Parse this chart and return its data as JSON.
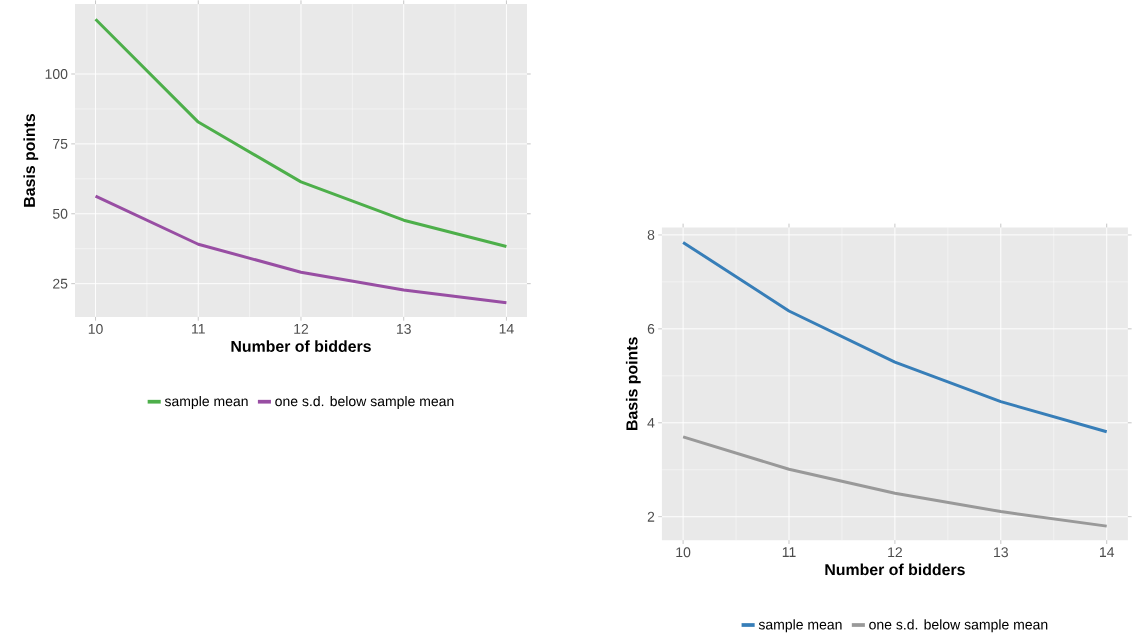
{
  "chart_data": [
    {
      "type": "line",
      "xlabel": "Number of bidders",
      "ylabel": "Basis points",
      "x": [
        10,
        11,
        12,
        13,
        14
      ],
      "series": [
        {
          "name": "sample mean",
          "color": "#4daf4a",
          "values": [
            119.6,
            82.8,
            61.4,
            47.7,
            38.3
          ]
        },
        {
          "name": "one s.d. below sample mean",
          "color": "#984ea3",
          "values": [
            56.3,
            39.1,
            29.1,
            22.7,
            18.2
          ]
        }
      ],
      "xlim": [
        9.8,
        14.2
      ],
      "ylim": [
        13.1,
        125
      ],
      "xticks": [
        10,
        11,
        12,
        13,
        14
      ],
      "yticks": [
        25,
        50,
        75,
        100
      ],
      "grid": true,
      "legend": "bottom"
    },
    {
      "type": "line",
      "xlabel": "Number of bidders",
      "ylabel": "Basis points",
      "x": [
        10,
        11,
        12,
        13,
        14
      ],
      "series": [
        {
          "name": "sample mean",
          "color": "#377eb8",
          "values": [
            7.84,
            6.38,
            5.29,
            4.45,
            3.81
          ]
        },
        {
          "name": "one s.d. below sample mean",
          "color": "#999999",
          "values": [
            3.7,
            3.01,
            2.5,
            2.11,
            1.8
          ]
        }
      ],
      "xlim": [
        9.8,
        14.2
      ],
      "ylim": [
        1.5,
        8.16
      ],
      "xticks": [
        10,
        11,
        12,
        13,
        14
      ],
      "yticks": [
        2,
        4,
        6,
        8
      ],
      "grid": true,
      "legend": "bottom"
    }
  ]
}
